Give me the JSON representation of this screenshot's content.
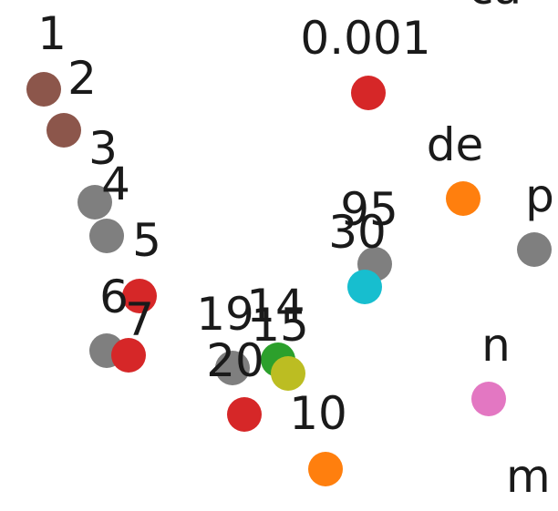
{
  "chart_data": {
    "type": "scatter",
    "title": "",
    "xlabel": "",
    "ylabel": "",
    "grid": false,
    "legend": "none",
    "xlim": [
      0,
      612
    ],
    "ylim": [
      561,
      0
    ],
    "points": [
      {
        "label": "1",
        "x": 48,
        "y": 98,
        "color": "#8c564b"
      },
      {
        "label": "2",
        "x": 70,
        "y": 143,
        "color": "#8c564b"
      },
      {
        "label": "3",
        "x": 104,
        "y": 222,
        "color": "#7f7f7f"
      },
      {
        "label": "4",
        "x": 117,
        "y": 259,
        "color": "#7f7f7f"
      },
      {
        "label": "5",
        "x": 153,
        "y": 325,
        "color": "#d62728"
      },
      {
        "label": "6",
        "x": 117,
        "y": 385,
        "color": "#7f7f7f"
      },
      {
        "label": "7",
        "x": 141,
        "y": 390,
        "color": "#d62728"
      },
      {
        "label": "19",
        "x": 255,
        "y": 404,
        "color": "#7f7f7f"
      },
      {
        "label": "14",
        "x": 305,
        "y": 395,
        "color": "#2ca02c"
      },
      {
        "label": "15",
        "x": 316,
        "y": 410,
        "color": "#bcbd22"
      },
      {
        "label": "20",
        "x": 268,
        "y": 455,
        "color": "#d62728"
      },
      {
        "label": "10",
        "x": 357,
        "y": 515,
        "color": "#ff7f0e"
      },
      {
        "label": "0.001",
        "x": 404,
        "y": 102,
        "color": "#d62728"
      },
      {
        "label": "95",
        "x": 411,
        "y": 290,
        "color": "#7f7f7f"
      },
      {
        "label": "30",
        "x": 400,
        "y": 315,
        "color": "#17becf"
      },
      {
        "label": "de",
        "x": 508,
        "y": 218,
        "color": "#ff7f0e"
      },
      {
        "label": "p",
        "x": 586,
        "y": 274,
        "color": "#7f7f7f"
      },
      {
        "label": "n",
        "x": 536,
        "y": 438,
        "color": "#e377c2"
      }
    ],
    "annotations": [
      {
        "text": "ca",
        "x": 514,
        "y": 4
      },
      {
        "text": "m",
        "x": 555,
        "y": 540
      }
    ]
  }
}
